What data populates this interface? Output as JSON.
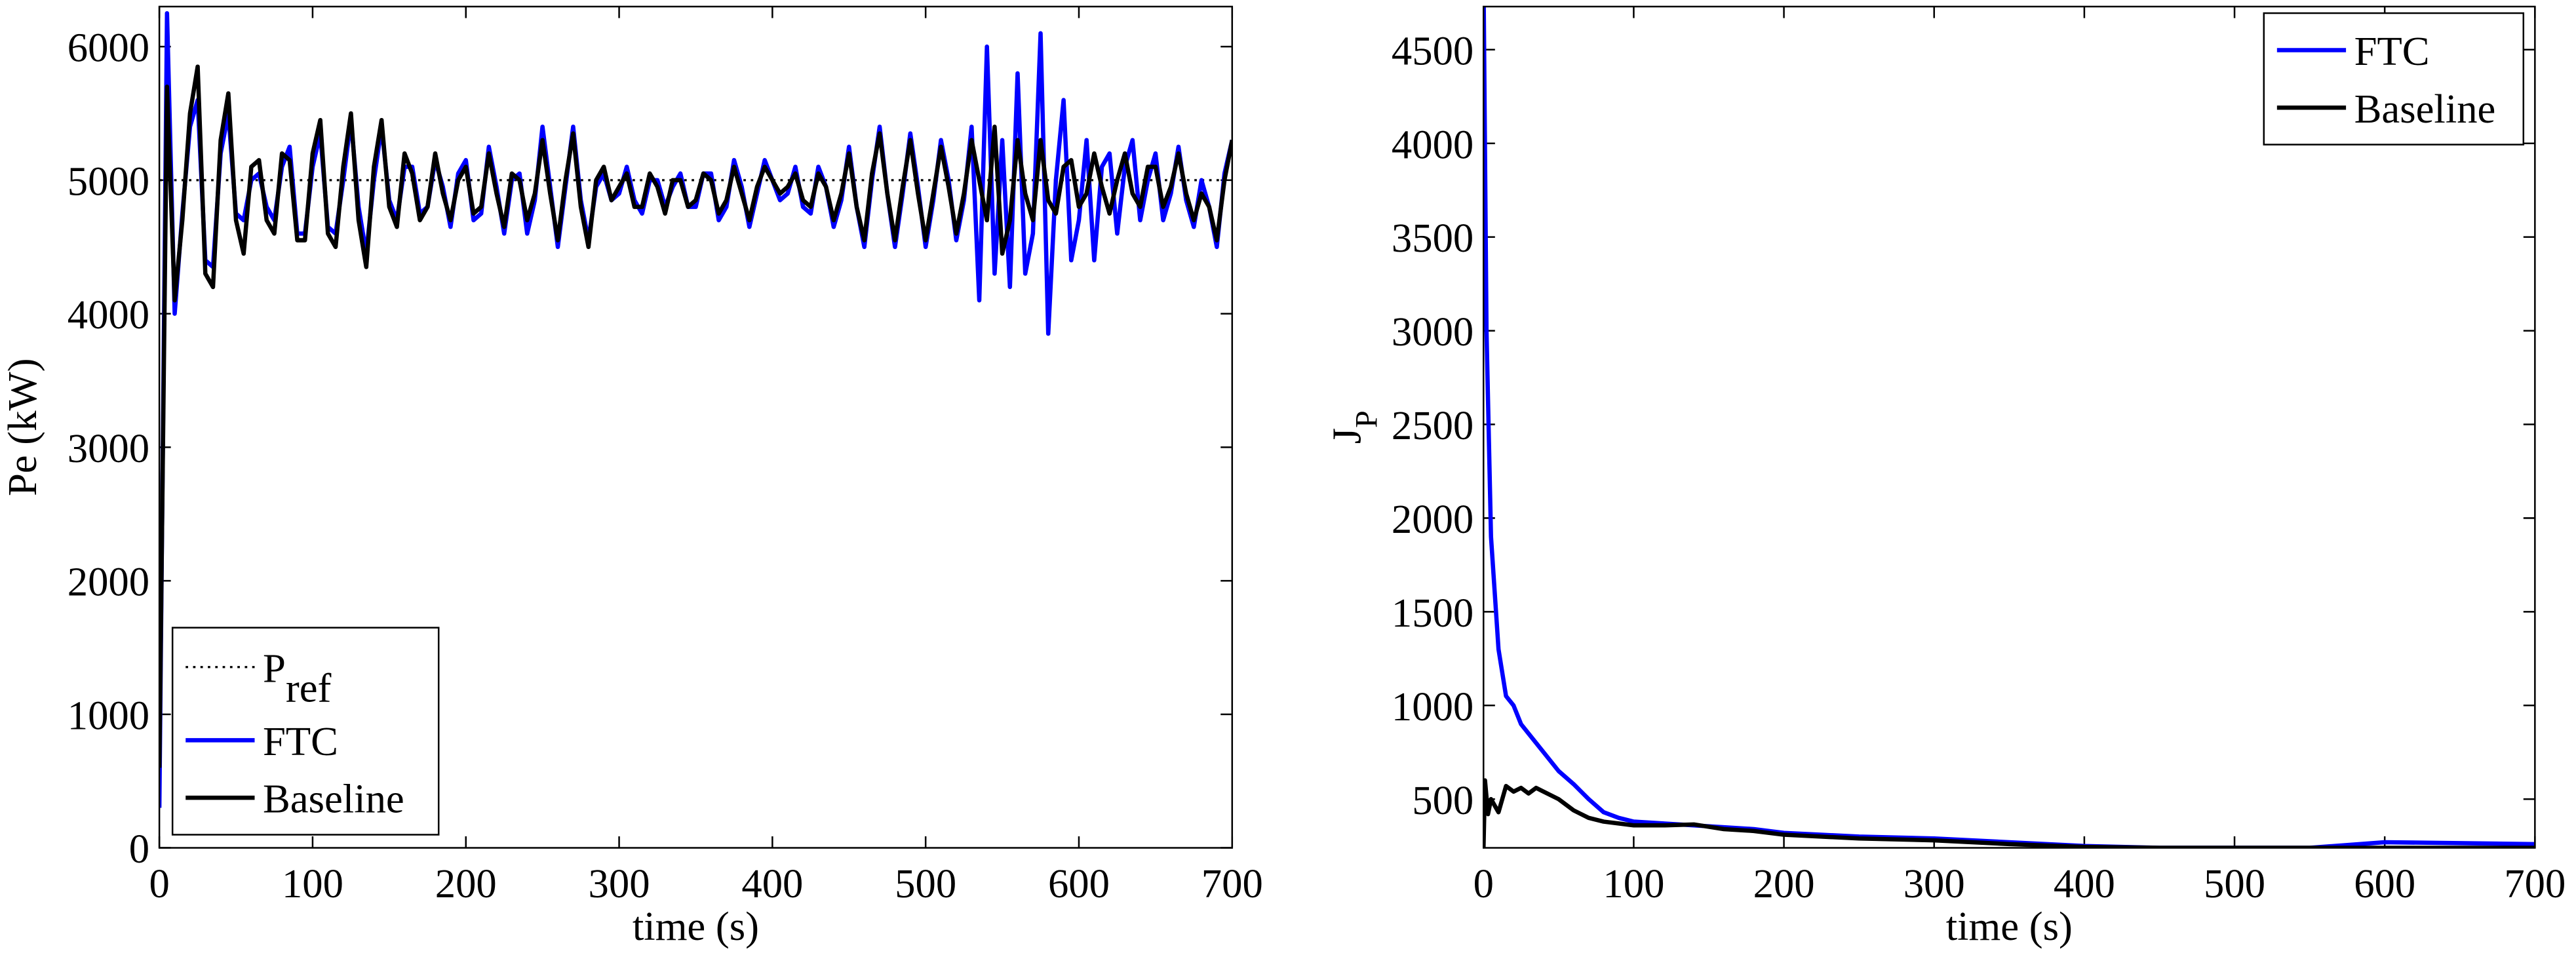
{
  "chart_data": [
    {
      "type": "line",
      "xlabel": "time (s)",
      "ylabel": "Pe (kW)",
      "xlim": [
        0,
        700
      ],
      "xticks": [
        0,
        100,
        200,
        300,
        400,
        500,
        600,
        700
      ],
      "ylim": [
        0,
        6300
      ],
      "yticks": [
        0,
        1000,
        2000,
        3000,
        4000,
        5000,
        6000
      ],
      "legend": "lower left",
      "x": [
        0,
        5,
        10,
        15,
        20,
        25,
        30,
        35,
        40,
        45,
        50,
        55,
        60,
        65,
        70,
        75,
        80,
        85,
        90,
        95,
        100,
        105,
        110,
        115,
        120,
        125,
        130,
        135,
        140,
        145,
        150,
        155,
        160,
        165,
        170,
        175,
        180,
        185,
        190,
        195,
        200,
        205,
        210,
        215,
        220,
        225,
        230,
        235,
        240,
        245,
        250,
        255,
        260,
        265,
        270,
        275,
        280,
        285,
        290,
        295,
        300,
        305,
        310,
        315,
        320,
        325,
        330,
        335,
        340,
        345,
        350,
        355,
        360,
        365,
        370,
        375,
        380,
        385,
        390,
        395,
        400,
        405,
        410,
        415,
        420,
        425,
        430,
        435,
        440,
        445,
        450,
        455,
        460,
        465,
        470,
        475,
        480,
        485,
        490,
        495,
        500,
        505,
        510,
        515,
        520,
        525,
        530,
        535,
        540,
        545,
        550,
        555,
        560,
        565,
        570,
        575,
        580,
        585,
        590,
        595,
        600,
        605,
        610,
        615,
        620,
        625,
        630,
        635,
        640,
        645,
        650,
        655,
        660,
        665,
        670,
        675,
        680,
        685,
        690,
        695,
        700
      ],
      "series": [
        {
          "name": "P",
          "name_sub": "ref",
          "color": "#000000",
          "line_style": "dotted",
          "x": [
            0,
            700
          ],
          "values": [
            5000,
            5000
          ]
        },
        {
          "name": "FTC",
          "color": "#0000ff",
          "line_style": "solid",
          "values": [
            300,
            6250,
            4000,
            4750,
            5400,
            5600,
            4400,
            4350,
            5200,
            5500,
            4750,
            4700,
            5000,
            5050,
            4800,
            4700,
            5100,
            5250,
            4600,
            4600,
            5100,
            5350,
            4650,
            4600,
            5000,
            5450,
            4800,
            4450,
            5000,
            5400,
            4850,
            4700,
            5100,
            5100,
            4750,
            4800,
            5150,
            4950,
            4650,
            5050,
            5150,
            4700,
            4750,
            5250,
            4950,
            4600,
            5000,
            5050,
            4600,
            4850,
            5400,
            4950,
            4500,
            4950,
            5400,
            4850,
            4550,
            4950,
            5050,
            4850,
            4900,
            5100,
            4850,
            4750,
            5000,
            5000,
            4800,
            4950,
            5050,
            4800,
            4800,
            5050,
            5050,
            4700,
            4800,
            5150,
            4950,
            4650,
            4900,
            5150,
            5000,
            4850,
            4900,
            5100,
            4800,
            4750,
            5100,
            4950,
            4650,
            4850,
            5250,
            4800,
            4500,
            5000,
            5400,
            4900,
            4500,
            4900,
            5350,
            4950,
            4500,
            4850,
            5300,
            5000,
            4550,
            4850,
            5400,
            4100,
            6000,
            4300,
            5300,
            4200,
            5800,
            4300,
            4600,
            6100,
            3850,
            5000,
            5600,
            4400,
            4700,
            5300,
            4400,
            5100,
            5200,
            4600,
            5100,
            5300,
            4700,
            5000,
            5200,
            4700,
            4900,
            5250,
            4850,
            4650,
            5000,
            4800,
            4500,
            5050,
            5300
          ]
        },
        {
          "name": "Baseline",
          "color": "#000000",
          "line_style": "solid",
          "values": [
            600,
            5700,
            4100,
            4700,
            5500,
            5850,
            4300,
            4200,
            5300,
            5650,
            4700,
            4450,
            5100,
            5150,
            4700,
            4600,
            5200,
            5150,
            4550,
            4550,
            5200,
            5450,
            4600,
            4500,
            5100,
            5500,
            4700,
            4350,
            5100,
            5450,
            4800,
            4650,
            5200,
            5050,
            4700,
            4800,
            5200,
            4900,
            4700,
            5000,
            5100,
            4750,
            4800,
            5200,
            4900,
            4650,
            5050,
            5000,
            4700,
            4900,
            5300,
            4900,
            4550,
            5000,
            5350,
            4800,
            4500,
            5000,
            5100,
            4850,
            4950,
            5050,
            4800,
            4800,
            5050,
            4950,
            4750,
            5000,
            5000,
            4800,
            4850,
            5050,
            5000,
            4750,
            4850,
            5100,
            4900,
            4700,
            4950,
            5100,
            5000,
            4900,
            4950,
            5050,
            4850,
            4800,
            5050,
            4950,
            4700,
            4900,
            5200,
            4800,
            4550,
            5050,
            5350,
            4900,
            4550,
            4950,
            5300,
            4900,
            4550,
            4900,
            5250,
            4950,
            4600,
            4900,
            5300,
            5000,
            4700,
            5400,
            4450,
            4700,
            5300,
            4900,
            4700,
            5300,
            4850,
            4750,
            5100,
            5150,
            4800,
            4900,
            5200,
            4950,
            4750,
            5000,
            5200,
            4900,
            4800,
            5100,
            5100,
            4800,
            4950,
            5200,
            4900,
            4700,
            4900,
            4800,
            4550,
            5000,
            5300
          ]
        }
      ]
    },
    {
      "type": "line",
      "xlabel": "time (s)",
      "ylabel": "J",
      "ylabel_sub": "P",
      "xlim": [
        0,
        700
      ],
      "xticks": [
        0,
        100,
        200,
        300,
        400,
        500,
        600,
        700
      ],
      "ylim": [
        240,
        4730
      ],
      "yticks": [
        500,
        1000,
        1500,
        2000,
        2500,
        3000,
        3500,
        4000,
        4500
      ],
      "legend": "upper right",
      "series": [
        {
          "name": "FTC",
          "color": "#0000ff",
          "line_style": "solid",
          "x": [
            0,
            2,
            5,
            10,
            15,
            20,
            25,
            30,
            40,
            50,
            60,
            70,
            80,
            90,
            100,
            120,
            140,
            160,
            180,
            200,
            250,
            300,
            350,
            400,
            450,
            500,
            550,
            600,
            650,
            700
          ],
          "values": [
            4900,
            3000,
            1900,
            1300,
            1050,
            1000,
            900,
            850,
            750,
            650,
            580,
            500,
            430,
            400,
            380,
            370,
            360,
            350,
            340,
            320,
            300,
            290,
            270,
            250,
            240,
            240,
            240,
            270,
            265,
            260
          ]
        },
        {
          "name": "Baseline",
          "color": "#000000",
          "line_style": "solid",
          "x": [
            0,
            1,
            3,
            5,
            10,
            15,
            20,
            25,
            30,
            35,
            40,
            50,
            60,
            70,
            80,
            90,
            100,
            120,
            140,
            160,
            180,
            200,
            250,
            300,
            350,
            400,
            450,
            500,
            550,
            600,
            650,
            700
          ],
          "values": [
            240,
            600,
            420,
            500,
            430,
            570,
            540,
            560,
            530,
            560,
            540,
            500,
            440,
            400,
            380,
            370,
            360,
            360,
            365,
            340,
            330,
            310,
            290,
            280,
            260,
            245,
            240,
            240,
            240,
            240,
            240,
            240
          ]
        }
      ]
    }
  ]
}
